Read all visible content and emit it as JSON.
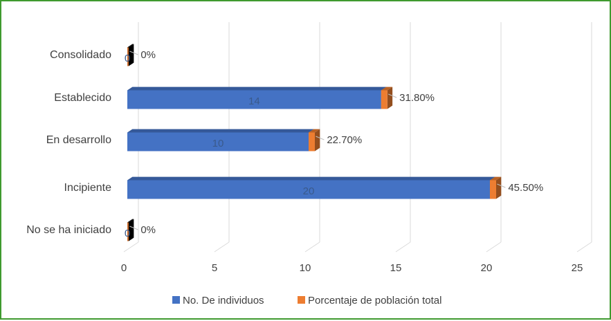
{
  "chart_data": {
    "type": "bar",
    "orientation": "horizontal",
    "style": "3d",
    "categories": [
      "No se ha iniciado",
      "Incipiente",
      "En desarrollo",
      "Establecido",
      "Consolidado"
    ],
    "series": [
      {
        "name": "No. De individuos",
        "color": "#4472c4",
        "values": [
          0,
          20,
          10,
          14,
          0
        ],
        "labels": [
          "0",
          "20",
          "10",
          "14",
          "0"
        ]
      },
      {
        "name": "Porcentaje de población total",
        "color": "#ed7d31",
        "values": [
          0,
          0.455,
          0.227,
          0.318,
          0
        ],
        "labels": [
          "0%",
          "45.50%",
          "22.70%",
          "31.80%",
          "0%"
        ]
      }
    ],
    "xlim": [
      0,
      25
    ],
    "x_ticks": [
      "0",
      "5",
      "10",
      "15",
      "20",
      "25"
    ],
    "grid": true,
    "legend_position": "bottom"
  }
}
